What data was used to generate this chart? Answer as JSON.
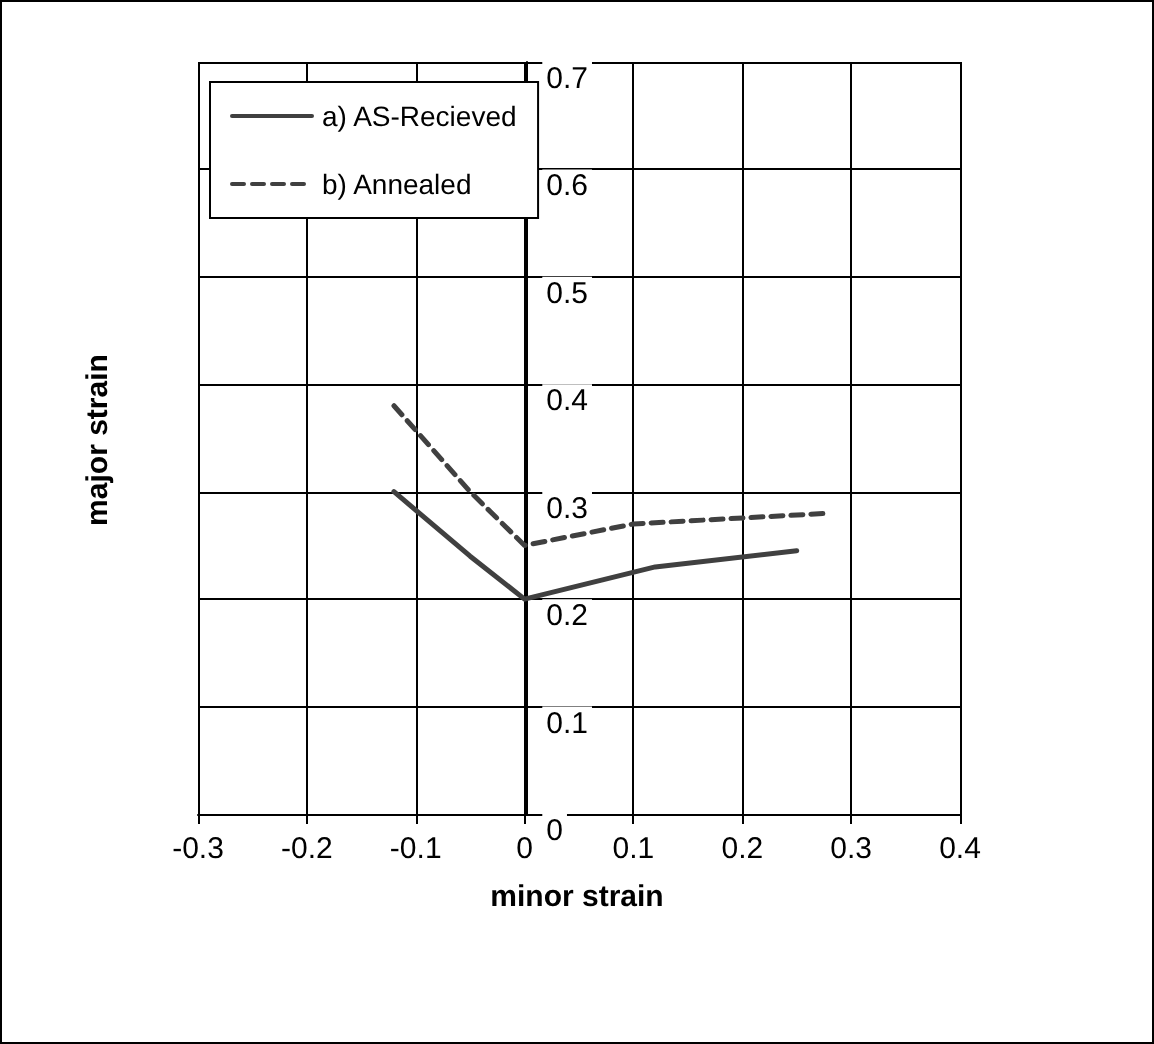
{
  "chart_data": {
    "type": "line",
    "xlabel": "minor strain",
    "ylabel": "major strain",
    "xlim": [
      -0.3,
      0.4
    ],
    "xticks": [
      -0.3,
      -0.2,
      -0.1,
      0,
      0.1,
      0.2,
      0.3,
      0.4
    ],
    "ylim": [
      0,
      0.7
    ],
    "yticks": [
      0,
      0.1,
      0.2,
      0.3,
      0.4,
      0.5,
      0.6,
      0.7
    ],
    "grid": true,
    "legend": "top left",
    "marker": "none",
    "series": [
      {
        "name": "a) AS-Recieved",
        "color": "#404040",
        "line_style": "solid",
        "x": [
          -0.12,
          -0.05,
          0,
          0.12,
          0.25
        ],
        "values": [
          0.3,
          0.24,
          0.2,
          0.23,
          0.245
        ]
      },
      {
        "name": "b) Annealed",
        "color": "#404040",
        "line_style": "dashed",
        "x": [
          -0.12,
          -0.05,
          0,
          0.1,
          0.28
        ],
        "values": [
          0.38,
          0.3,
          0.25,
          0.27,
          0.28
        ]
      }
    ]
  }
}
